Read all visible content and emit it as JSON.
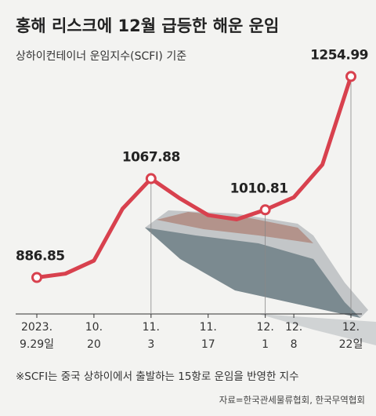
{
  "chart_data": {
    "type": "line",
    "title": "홍해 리스크에 12월 급등한 해운 운임",
    "subtitle": "상하이컨테이너 운임지수(SCFI) 기준",
    "categories": [
      [
        "2023.",
        "9.29일"
      ],
      null,
      [
        "10.",
        "20"
      ],
      null,
      [
        "11.",
        "3"
      ],
      null,
      [
        "11.",
        "17"
      ],
      null,
      [
        "12.",
        "1"
      ],
      [
        "12.",
        "8"
      ],
      null,
      [
        "12.",
        "22일"
      ]
    ],
    "series": [
      {
        "name": "SCFI",
        "color": "#d8414e",
        "values": [
          886.85,
          893.74,
          917.66,
          1012.58,
          1067.88,
          1031.96,
          1001.03,
          993.21,
          1010.81,
          1033.65,
          1093.52,
          1254.99
        ]
      }
    ],
    "labeled_points": [
      0,
      4,
      8,
      11
    ],
    "ylim": [
      820,
      1280
    ],
    "footnote": "※SCFI는 중국 상하이에서 출발하는 15항로 운임을 반영한 지수",
    "source": "자료=한국관세물류협회, 한국무역협회"
  }
}
